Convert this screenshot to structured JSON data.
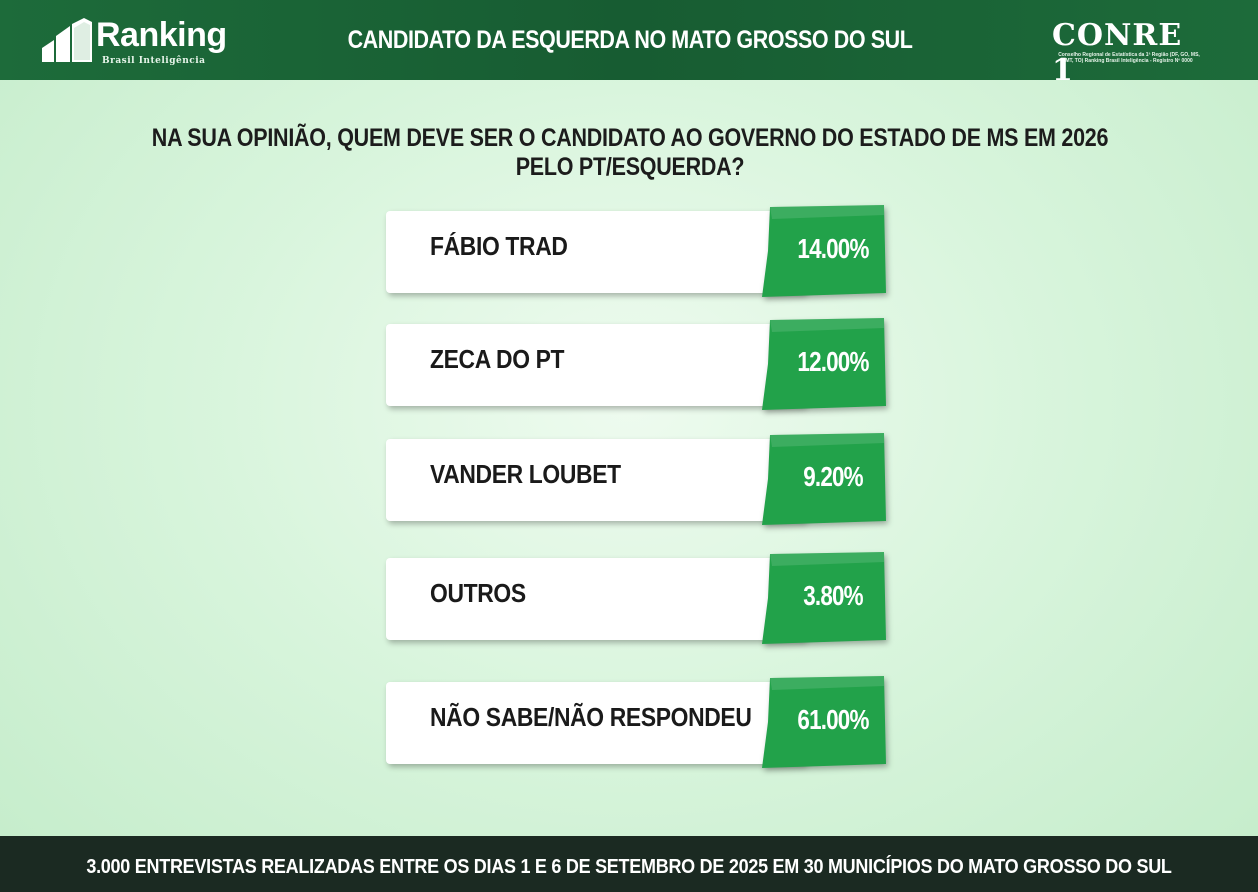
{
  "header": {
    "brand_name": "Ranking",
    "brand_sub": "Brasil Inteligência",
    "title": "CANDIDATO DA ESQUERDA NO MATO GROSSO DO SUL",
    "conre_name": "CONRE 1",
    "conre_sub": "Conselho Regional de Estatística da 1ª Região (DF, GO, MS, MT, TO) Ranking Brasil Inteligência - Registro Nº 0000"
  },
  "question": "NA SUA OPINIÃO, QUEM DEVE SER O CANDIDATO AO GOVERNO DO ESTADO DE MS EM 2026 PELO PT/ESQUERDA?",
  "chart_data": {
    "type": "bar",
    "title": "NA SUA OPINIÃO, QUEM DEVE SER O CANDIDATO AO GOVERNO DO ESTADO DE MS EM 2026 PELO PT/ESQUERDA?",
    "categories": [
      "FÁBIO TRAD",
      "ZECA DO PT",
      "VANDER LOUBET",
      "OUTROS",
      "NÃO SABE/NÃO RESPONDEU"
    ],
    "values": [
      14.0,
      12.0,
      9.2,
      3.8,
      61.0
    ],
    "value_labels": [
      "14.00%",
      "12.00%",
      "9.20%",
      "3.80%",
      "61.00%"
    ],
    "unit": "%"
  },
  "colors": {
    "header_green": "#1d6b3a",
    "value_green": "#22a24a",
    "footer_dark": "#1b2a22"
  },
  "footer": {
    "text": "3.000 ENTREVISTAS REALIZADAS ENTRE OS DIAS 1 E 6 DE SETEMBRO DE 2025 EM 30 MUNICÍPIOS DO MATO GROSSO DO SUL"
  }
}
